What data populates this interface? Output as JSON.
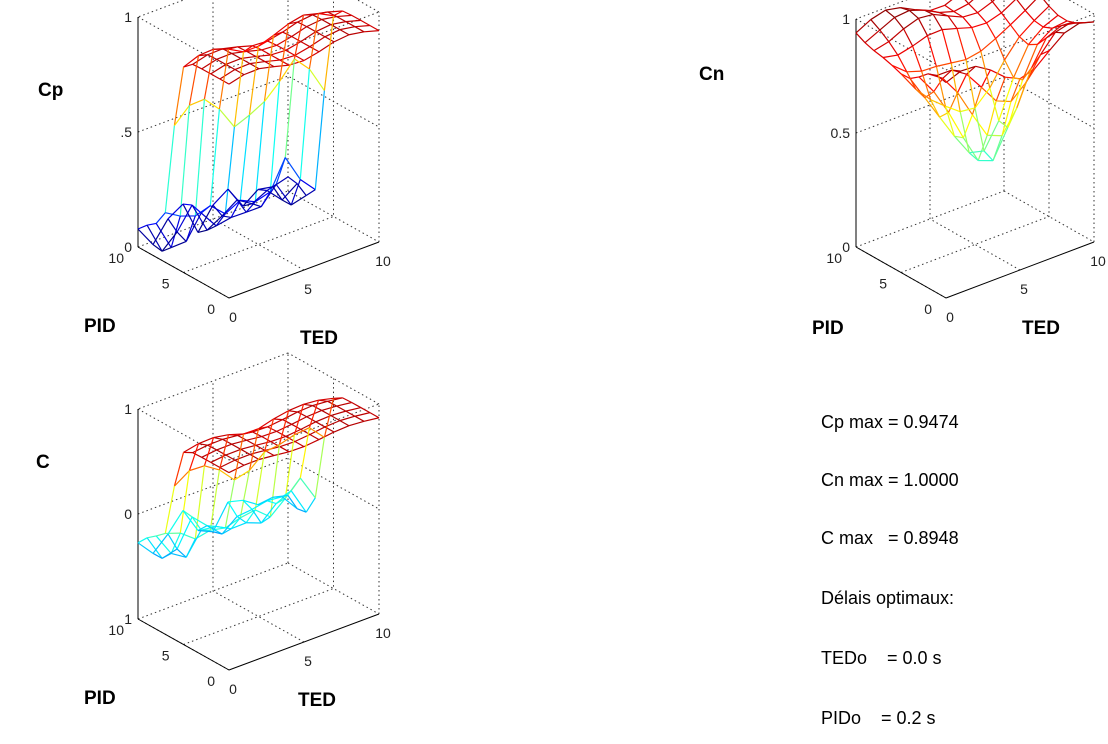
{
  "chart_data": [
    {
      "type": "surface",
      "zlabel": "Cp",
      "xlabel": "TED",
      "ylabel": "PID",
      "xlim": [
        0,
        10
      ],
      "ylim": [
        0,
        10
      ],
      "zlim": [
        0,
        1
      ],
      "xticks": [
        "0",
        "5",
        "10"
      ],
      "yticks": [
        "0",
        "5",
        "10"
      ],
      "zticks": [
        "0",
        ".5",
        "1"
      ],
      "grid": true,
      "colormap": "jet",
      "z_plateau": 0.9,
      "z_floor": 0.05
    },
    {
      "type": "surface",
      "zlabel": "Cn",
      "xlabel": "TED",
      "ylabel": "PID",
      "xlim": [
        0,
        10
      ],
      "ylim": [
        0,
        10
      ],
      "zlim": [
        0,
        1
      ],
      "xticks": [
        "0",
        "5",
        "10"
      ],
      "yticks": [
        "0",
        "5",
        "10"
      ],
      "zticks": [
        "0",
        "0.5",
        "1"
      ],
      "grid": true,
      "colormap": "jet",
      "z_plateau": 0.95,
      "z_dip_min": 0.3
    },
    {
      "type": "surface",
      "zlabel": "C",
      "xlabel": "TED",
      "ylabel": "PID",
      "xlim": [
        0,
        10
      ],
      "ylim": [
        0,
        10
      ],
      "zlim": [
        -1,
        1
      ],
      "xticks": [
        "0",
        "5",
        "10"
      ],
      "yticks": [
        "0",
        "5",
        "10"
      ],
      "zticks": [
        "1",
        "0",
        "1"
      ],
      "grid": true,
      "colormap": "jet",
      "z_plateau": 0.9,
      "z_floor": -0.3
    }
  ],
  "stats": {
    "cp_max": "Cp max = 0.9474",
    "cn_max": "Cn max = 1.0000",
    "c_max": "C max   = 0.8948",
    "delays_title": "Délais optimaux:",
    "tedo": "TEDo    = 0.0 s",
    "pido": "PIDo    = 0.2 s"
  }
}
